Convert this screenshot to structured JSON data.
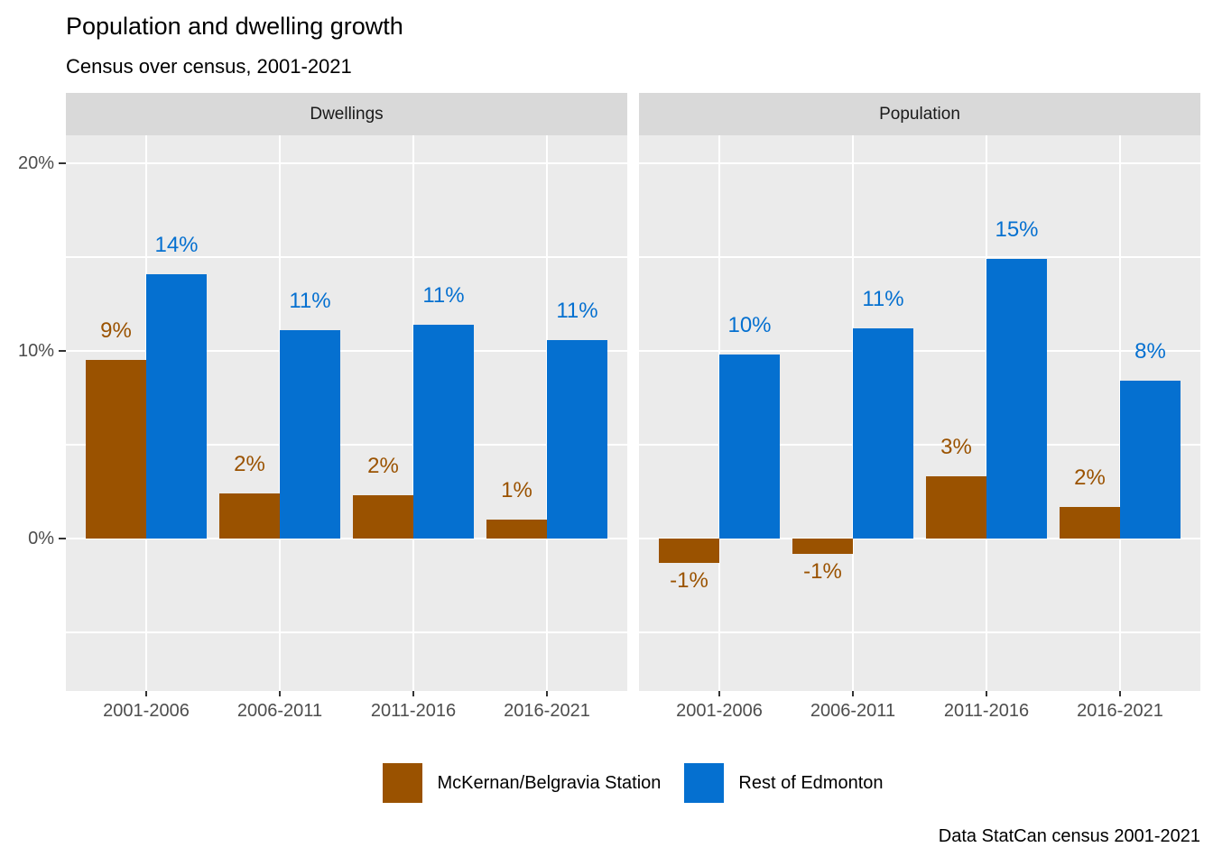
{
  "title": "Population and dwelling growth",
  "subtitle": "Census over census, 2001-2021",
  "caption": "Data StatCan census 2001-2021",
  "colors": {
    "mckernan": "#9A5200",
    "rest": "#0570D0",
    "panel_bg": "#EBEBEB",
    "strip_bg": "#D9D9D9",
    "grid": "#FFFFFF",
    "axis_text": "#4D4D4D",
    "tick_mark": "#333333",
    "text": "#000000"
  },
  "legend": {
    "items": [
      {
        "label": "McKernan/Belgravia Station",
        "color_key": "mckernan"
      },
      {
        "label": "Rest of Edmonton",
        "color_key": "rest"
      }
    ]
  },
  "chart_data": {
    "type": "bar",
    "title": "Population and dwelling growth",
    "subtitle": "Census over census, 2001-2021",
    "caption": "Data StatCan census 2001-2021",
    "legend_position": "bottom",
    "grid": true,
    "y_axis": {
      "tick_labels": [
        "20%",
        "10%",
        "0%"
      ],
      "tick_values": [
        20,
        10,
        0
      ],
      "minor_values": [
        15,
        5,
        -5
      ],
      "range": [
        -8.1,
        21.5
      ],
      "unit": "percent"
    },
    "facets": [
      {
        "label": "Dwellings",
        "categories": [
          "2001-2006",
          "2006-2011",
          "2011-2016",
          "2016-2021"
        ],
        "series": [
          {
            "name": "McKernan/Belgravia Station",
            "color_key": "mckernan",
            "values": [
              9.5,
              2.4,
              2.3,
              1.0
            ],
            "labels": [
              "9%",
              "2%",
              "2%",
              "1%"
            ]
          },
          {
            "name": "Rest of Edmonton",
            "color_key": "rest",
            "values": [
              14.1,
              11.1,
              11.4,
              10.6
            ],
            "labels": [
              "14%",
              "11%",
              "11%",
              "11%"
            ]
          }
        ]
      },
      {
        "label": "Population",
        "categories": [
          "2001-2006",
          "2006-2011",
          "2011-2016",
          "2016-2021"
        ],
        "series": [
          {
            "name": "McKernan/Belgravia Station",
            "color_key": "mckernan",
            "values": [
              -1.3,
              -0.8,
              3.3,
              1.7
            ],
            "labels": [
              "-1%",
              "-1%",
              "3%",
              "2%"
            ]
          },
          {
            "name": "Rest of Edmonton",
            "color_key": "rest",
            "values": [
              9.8,
              11.2,
              14.9,
              8.4
            ],
            "labels": [
              "10%",
              "11%",
              "15%",
              "8%"
            ]
          }
        ]
      }
    ]
  }
}
